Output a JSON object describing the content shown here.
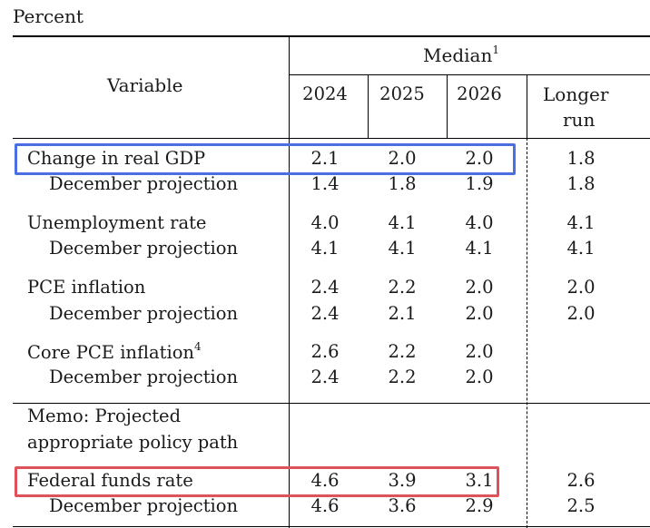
{
  "unit_label": "Percent",
  "header": {
    "variable": "Variable",
    "median": "Median",
    "median_note": "1",
    "years": [
      "2024",
      "2025",
      "2026"
    ],
    "longer_run_line1": "Longer",
    "longer_run_line2": "run"
  },
  "rows": {
    "gdp": {
      "label": "Change in real GDP",
      "values": [
        "2.1",
        "2.0",
        "2.0",
        "1.8"
      ]
    },
    "gdp_dec": {
      "label": "December projection",
      "values": [
        "1.4",
        "1.8",
        "1.9",
        "1.8"
      ]
    },
    "unemp": {
      "label": "Unemployment rate",
      "values": [
        "4.0",
        "4.1",
        "4.0",
        "4.1"
      ]
    },
    "unemp_dec": {
      "label": "December projection",
      "values": [
        "4.1",
        "4.1",
        "4.1",
        "4.1"
      ]
    },
    "pce": {
      "label": "PCE inflation",
      "values": [
        "2.4",
        "2.2",
        "2.0",
        "2.0"
      ]
    },
    "pce_dec": {
      "label": "December projection",
      "values": [
        "2.4",
        "2.1",
        "2.0",
        "2.0"
      ]
    },
    "core": {
      "label": "Core PCE inflation",
      "note": "4",
      "values": [
        "2.6",
        "2.2",
        "2.0",
        ""
      ]
    },
    "core_dec": {
      "label": "December projection",
      "values": [
        "2.4",
        "2.2",
        "2.0",
        ""
      ]
    },
    "ffr": {
      "label": "Federal funds rate",
      "values": [
        "4.6",
        "3.9",
        "3.1",
        "2.6"
      ]
    },
    "ffr_dec": {
      "label": "December projection",
      "values": [
        "4.6",
        "3.6",
        "2.9",
        "2.5"
      ]
    }
  },
  "memo": {
    "line1": "Memo: Projected",
    "line2": "appropriate policy path"
  },
  "highlight_colors": {
    "gdp_box": "#4a6fe3",
    "ffr_box": "#e0525a"
  }
}
